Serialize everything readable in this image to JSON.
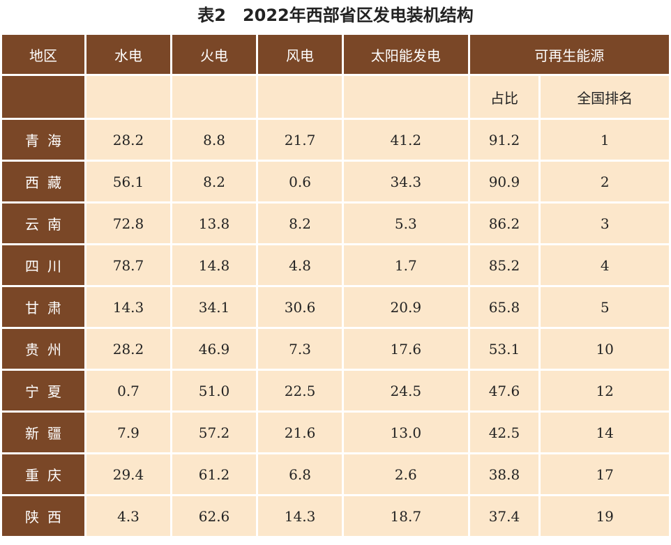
{
  "title": "表2　2022年西部省区发电装机结构",
  "table": {
    "header": [
      "地区",
      "水电",
      "火电",
      "风电",
      "太阳能发电",
      "可再生能源"
    ],
    "subheader": [
      "占比",
      "全国排名"
    ],
    "rows": [
      [
        "青海",
        "28.2",
        "8.8",
        "21.7",
        "41.2",
        "91.2",
        "1"
      ],
      [
        "西藏",
        "56.1",
        "8.2",
        "0.6",
        "34.3",
        "90.9",
        "2"
      ],
      [
        "云南",
        "72.8",
        "13.8",
        "8.2",
        "5.3",
        "86.2",
        "3"
      ],
      [
        "四川",
        "78.7",
        "14.8",
        "4.8",
        "1.7",
        "85.2",
        "4"
      ],
      [
        "甘肃",
        "14.3",
        "34.1",
        "30.6",
        "20.9",
        "65.8",
        "5"
      ],
      [
        "贵州",
        "28.2",
        "46.9",
        "7.3",
        "17.6",
        "53.1",
        "10"
      ],
      [
        "宁夏",
        "0.7",
        "51.0",
        "22.5",
        "24.5",
        "47.6",
        "12"
      ],
      [
        "新疆",
        "7.9",
        "57.2",
        "21.6",
        "13.0",
        "42.5",
        "14"
      ],
      [
        "重庆",
        "29.4",
        "61.2",
        "6.8",
        "2.6",
        "38.8",
        "17"
      ],
      [
        "陕西",
        "4.3",
        "62.6",
        "14.3",
        "18.7",
        "37.4",
        "19"
      ]
    ]
  }
}
